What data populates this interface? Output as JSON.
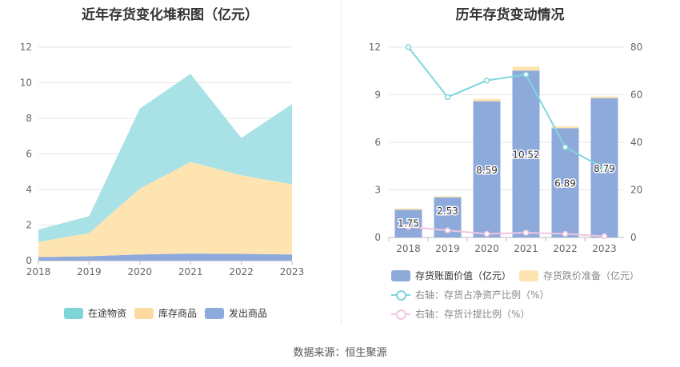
{
  "chart_data": [
    {
      "type": "area",
      "title": "近年存货变化堆积图（亿元）",
      "categories": [
        "2018",
        "2019",
        "2020",
        "2021",
        "2022",
        "2023"
      ],
      "ylim": [
        0,
        12
      ],
      "yticks": [
        "0",
        "2",
        "4",
        "6",
        "8",
        "10",
        "12"
      ],
      "stacked": true,
      "series": [
        {
          "name": "发出商品",
          "color": "#8eaadb",
          "values": [
            0.2,
            0.25,
            0.35,
            0.4,
            0.38,
            0.35
          ]
        },
        {
          "name": "库存商品",
          "color": "#fde4b0",
          "values": [
            0.85,
            1.3,
            3.7,
            5.15,
            4.42,
            3.95
          ]
        },
        {
          "name": "在途物资",
          "color": "#a8e2e6",
          "values": [
            0.7,
            0.95,
            4.5,
            4.95,
            2.1,
            4.5
          ]
        }
      ],
      "legend_order": [
        "在途物资",
        "库存商品",
        "发出商品"
      ],
      "legend_colors": [
        "#80d5d8",
        "#fddba0",
        "#8eaadb"
      ],
      "legend_position": "bottom"
    },
    {
      "type": "bar",
      "title": "历年存货变动情况",
      "categories": [
        "2018",
        "2019",
        "2020",
        "2021",
        "2022",
        "2023"
      ],
      "ylim_left": [
        0,
        12
      ],
      "yticks_left": [
        "0",
        "3",
        "6",
        "9",
        "12"
      ],
      "ylim_right": [
        0,
        80
      ],
      "yticks_right": [
        "0",
        "20",
        "40",
        "60",
        "80"
      ],
      "series": [
        {
          "name": "存货账面价值（亿元）",
          "type": "bar",
          "axis": "left",
          "color": "#8eaadb",
          "values": [
            1.75,
            2.53,
            8.59,
            10.52,
            6.89,
            8.79
          ],
          "labels": [
            "1.75",
            "2.53",
            "8.59",
            "10.52",
            "6.89",
            "8.79"
          ]
        },
        {
          "name": "存货跌价准备（亿元）",
          "type": "bar",
          "axis": "left",
          "stacked": true,
          "color": "#fde4b0",
          "values": [
            0.08,
            0.07,
            0.15,
            0.25,
            0.12,
            0.1
          ]
        },
        {
          "name": "右轴：存货占净资产比例（%）",
          "type": "line",
          "axis": "right",
          "color": "#7fd6dc",
          "values": [
            80,
            59,
            66,
            68.5,
            38,
            29
          ]
        },
        {
          "name": "右轴：存货计提比例（%）",
          "type": "line",
          "axis": "right",
          "color": "#f0c6e0",
          "values": [
            4.5,
            3,
            1.5,
            2,
            1.5,
            0.5
          ]
        }
      ],
      "legend_position": "bottom"
    }
  ],
  "source_text": "数据来源：恒生聚源"
}
